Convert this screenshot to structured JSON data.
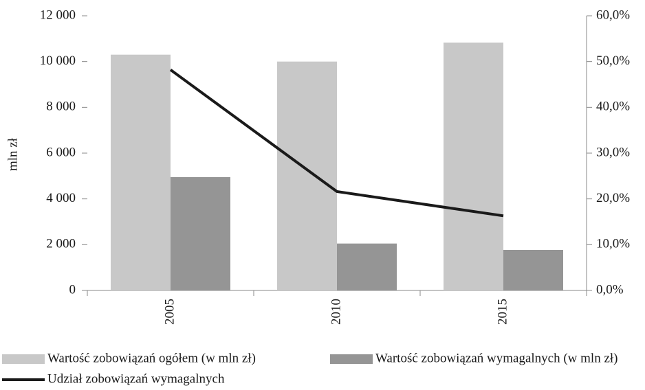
{
  "chart_data": {
    "type": "bar-line",
    "y_label": "mln zł",
    "categories": [
      "2005",
      "2010",
      "2015"
    ],
    "series": [
      {
        "name": "Wartość zobowiązań ogółem (w mln zł)",
        "type": "bar",
        "color": "#c8c8c8",
        "values": [
          10300,
          10000,
          10830
        ]
      },
      {
        "name": "Wartość zobowiązań wymagalnych (w mln zł)",
        "type": "bar",
        "color": "#959595",
        "values": [
          4950,
          2050,
          1770
        ]
      },
      {
        "name": "Udział zobowiązań wymagalnych",
        "type": "line",
        "axis": "y2",
        "color": "#1a1a1a",
        "values": [
          48.2,
          21.6,
          16.3
        ]
      }
    ],
    "ylim": [
      0,
      12000
    ],
    "yticks": [
      0,
      {
        "value": 2000,
        "label": "2 000"
      },
      {
        "value": 4000,
        "label": "4 000"
      },
      {
        "value": 6000,
        "label": "6 000"
      },
      {
        "value": 8000,
        "label": "8 000"
      },
      {
        "value": 10000,
        "label": "10 000"
      },
      {
        "value": 12000,
        "label": "12 000"
      }
    ],
    "y2lim": [
      0,
      60
    ],
    "y2ticks": [
      {
        "value": 0,
        "label": "0,0%"
      },
      {
        "value": 10,
        "label": "10,0%"
      },
      {
        "value": 20,
        "label": "20,0%"
      },
      {
        "value": 30,
        "label": "30,0%"
      },
      {
        "value": 40,
        "label": "40,0%"
      },
      {
        "value": 50,
        "label": "50,0%"
      },
      {
        "value": 60,
        "label": "60,0%"
      }
    ],
    "legend": "bottom",
    "grid": false
  }
}
